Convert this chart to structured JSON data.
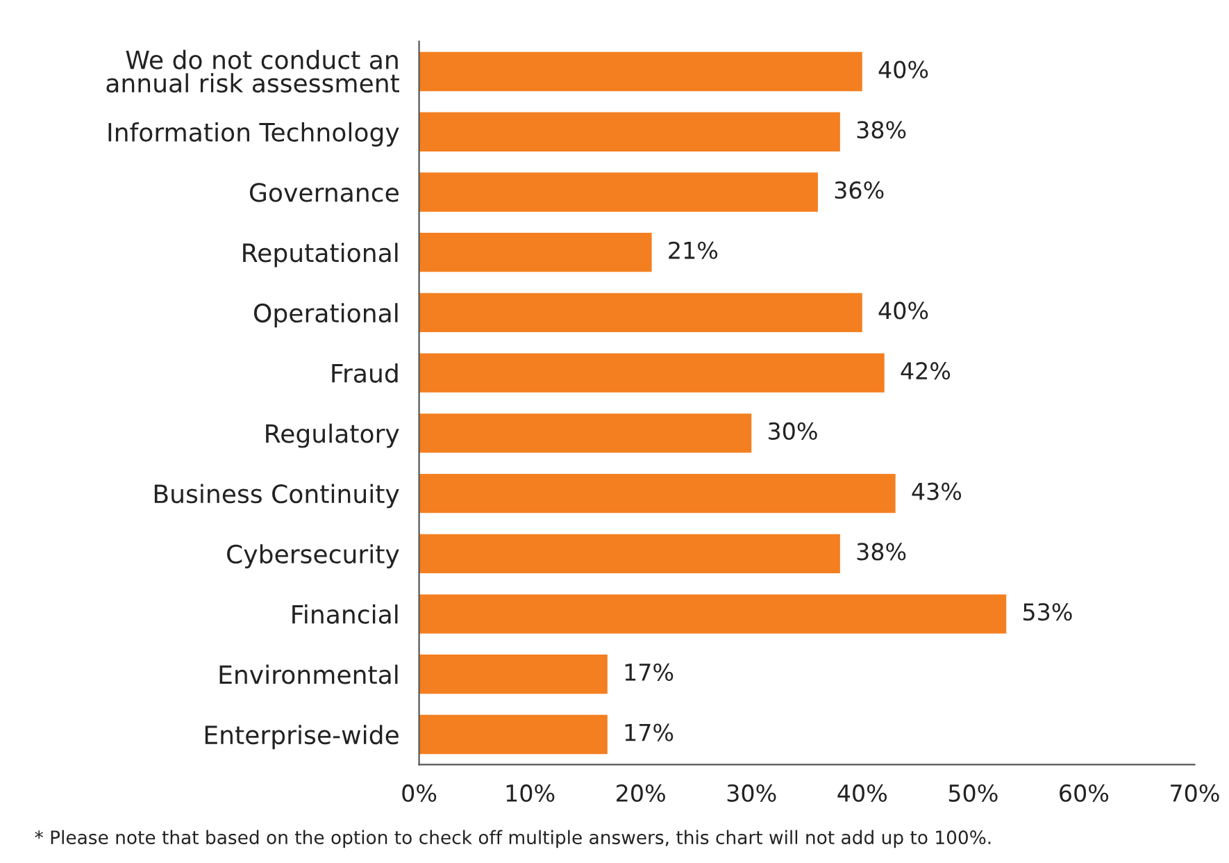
{
  "chart_data": {
    "type": "bar",
    "orientation": "horizontal",
    "categories": [
      "We do not conduct an\nannual risk assessment",
      "Information Technology",
      "Governance",
      "Reputational",
      "Operational",
      "Fraud",
      "Regulatory",
      "Business Continuity",
      "Cybersecurity",
      "Financial",
      "Environmental",
      "Enterprise-wide"
    ],
    "values": [
      40,
      38,
      36,
      21,
      40,
      42,
      30,
      43,
      38,
      53,
      17,
      17
    ],
    "value_labels": [
      "40%",
      "38%",
      "36%",
      "21%",
      "40%",
      "42%",
      "30%",
      "43%",
      "38%",
      "53%",
      "17%",
      "17%"
    ],
    "color": "#f47f20",
    "xlim": [
      0,
      70
    ],
    "xticks": [
      {
        "value": 0,
        "label": "0%"
      },
      {
        "value": 10,
        "label": "10%"
      },
      {
        "value": 20,
        "label": "20%"
      },
      {
        "value": 30,
        "label": "30%"
      },
      {
        "value": 40,
        "label": "40%"
      },
      {
        "value": 50,
        "label": "50%"
      },
      {
        "value": 60,
        "label": "60%"
      },
      {
        "value": 70,
        "label": "70%"
      }
    ],
    "grid": false,
    "annotations": [
      "* Please note that based on the option to check off multiple answers, this chart will not add up to 100%."
    ]
  }
}
